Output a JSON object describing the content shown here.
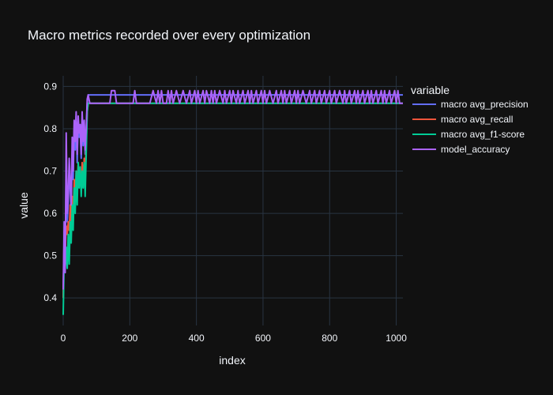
{
  "chart_data": {
    "type": "line",
    "title": "Macro metrics recorded over every optimization",
    "xlabel": "index",
    "ylabel": "value",
    "xlim": [
      0,
      1020
    ],
    "ylim": [
      0.335,
      0.925
    ],
    "x_ticks": [
      0,
      200,
      400,
      600,
      800,
      1000
    ],
    "y_ticks": [
      0.4,
      0.5,
      0.6,
      0.7,
      0.8,
      0.9
    ],
    "grid": true,
    "legend": {
      "title": "variable",
      "placement": "right"
    },
    "colors": {
      "background": "#111111",
      "grid": "#283442",
      "text": "#f2f5fa"
    },
    "series": [
      {
        "name": "macro avg_precision",
        "color": "#636efa",
        "points": [
          [
            0,
            0.4
          ],
          [
            3,
            0.55
          ],
          [
            6,
            0.49
          ],
          [
            9,
            0.72
          ],
          [
            12,
            0.58
          ],
          [
            15,
            0.62
          ],
          [
            18,
            0.7
          ],
          [
            21,
            0.66
          ],
          [
            24,
            0.6
          ],
          [
            27,
            0.74
          ],
          [
            30,
            0.68
          ],
          [
            33,
            0.8
          ],
          [
            36,
            0.75
          ],
          [
            39,
            0.83
          ],
          [
            42,
            0.72
          ],
          [
            45,
            0.82
          ],
          [
            48,
            0.78
          ],
          [
            51,
            0.8
          ],
          [
            54,
            0.73
          ],
          [
            57,
            0.83
          ],
          [
            60,
            0.76
          ],
          [
            63,
            0.81
          ],
          [
            66,
            0.74
          ],
          [
            69,
            0.79
          ],
          [
            72,
            0.86
          ],
          [
            75,
            0.88
          ],
          [
            1020,
            0.88
          ]
        ]
      },
      {
        "name": "macro avg_recall",
        "color": "#ef553b",
        "points": [
          [
            0,
            0.4
          ],
          [
            3,
            0.56
          ],
          [
            6,
            0.5
          ],
          [
            9,
            0.57
          ],
          [
            12,
            0.55
          ],
          [
            15,
            0.58
          ],
          [
            18,
            0.56
          ],
          [
            21,
            0.62
          ],
          [
            24,
            0.58
          ],
          [
            27,
            0.64
          ],
          [
            30,
            0.6
          ],
          [
            33,
            0.68
          ],
          [
            36,
            0.64
          ],
          [
            39,
            0.7
          ],
          [
            42,
            0.66
          ],
          [
            45,
            0.72
          ],
          [
            48,
            0.68
          ],
          [
            51,
            0.7
          ],
          [
            54,
            0.66
          ],
          [
            57,
            0.72
          ],
          [
            60,
            0.68
          ],
          [
            63,
            0.73
          ],
          [
            66,
            0.7
          ],
          [
            69,
            0.76
          ],
          [
            72,
            0.84
          ],
          [
            75,
            0.86
          ],
          [
            1020,
            0.86
          ]
        ]
      },
      {
        "name": "macro avg_f1-score",
        "color": "#00cc96",
        "points": [
          [
            0,
            0.36
          ],
          [
            3,
            0.5
          ],
          [
            6,
            0.47
          ],
          [
            9,
            0.52
          ],
          [
            12,
            0.47
          ],
          [
            15,
            0.55
          ],
          [
            18,
            0.48
          ],
          [
            21,
            0.58
          ],
          [
            24,
            0.53
          ],
          [
            27,
            0.62
          ],
          [
            30,
            0.56
          ],
          [
            33,
            0.66
          ],
          [
            36,
            0.6
          ],
          [
            39,
            0.7
          ],
          [
            42,
            0.62
          ],
          [
            45,
            0.72
          ],
          [
            48,
            0.66
          ],
          [
            51,
            0.71
          ],
          [
            54,
            0.64
          ],
          [
            57,
            0.7
          ],
          [
            60,
            0.66
          ],
          [
            63,
            0.72
          ],
          [
            66,
            0.64
          ],
          [
            69,
            0.74
          ],
          [
            72,
            0.84
          ],
          [
            75,
            0.86
          ],
          [
            1020,
            0.86
          ]
        ]
      },
      {
        "name": "model_accuracy",
        "color": "#ab63fa",
        "points": [
          [
            0,
            0.42
          ],
          [
            3,
            0.58
          ],
          [
            6,
            0.46
          ],
          [
            9,
            0.79
          ],
          [
            12,
            0.6
          ],
          [
            15,
            0.64
          ],
          [
            18,
            0.73
          ],
          [
            21,
            0.67
          ],
          [
            24,
            0.62
          ],
          [
            27,
            0.78
          ],
          [
            30,
            0.7
          ],
          [
            33,
            0.82
          ],
          [
            36,
            0.77
          ],
          [
            39,
            0.84
          ],
          [
            42,
            0.74
          ],
          [
            45,
            0.83
          ],
          [
            48,
            0.79
          ],
          [
            51,
            0.81
          ],
          [
            54,
            0.74
          ],
          [
            57,
            0.84
          ],
          [
            60,
            0.77
          ],
          [
            63,
            0.82
          ],
          [
            66,
            0.75
          ],
          [
            69,
            0.8
          ],
          [
            72,
            0.87
          ],
          [
            75,
            0.88
          ],
          [
            80,
            0.86
          ],
          [
            140,
            0.86
          ],
          [
            145,
            0.89
          ],
          [
            155,
            0.89
          ],
          [
            160,
            0.86
          ],
          [
            210,
            0.86
          ],
          [
            215,
            0.89
          ],
          [
            220,
            0.86
          ],
          [
            260,
            0.86
          ],
          [
            270,
            0.89
          ],
          [
            280,
            0.86
          ],
          [
            285,
            0.89
          ],
          [
            290,
            0.86
          ],
          [
            295,
            0.89
          ],
          [
            300,
            0.86
          ],
          [
            310,
            0.86
          ],
          [
            315,
            0.89
          ],
          [
            320,
            0.86
          ],
          [
            325,
            0.89
          ],
          [
            330,
            0.86
          ],
          [
            340,
            0.89
          ],
          [
            350,
            0.86
          ],
          [
            360,
            0.89
          ],
          [
            370,
            0.86
          ],
          [
            380,
            0.89
          ],
          [
            385,
            0.86
          ],
          [
            395,
            0.89
          ],
          [
            400,
            0.86
          ],
          [
            405,
            0.89
          ],
          [
            410,
            0.86
          ],
          [
            420,
            0.89
          ],
          [
            425,
            0.86
          ],
          [
            430,
            0.89
          ],
          [
            440,
            0.86
          ],
          [
            445,
            0.89
          ],
          [
            450,
            0.86
          ],
          [
            455,
            0.89
          ],
          [
            460,
            0.86
          ],
          [
            470,
            0.89
          ],
          [
            480,
            0.86
          ],
          [
            485,
            0.89
          ],
          [
            490,
            0.86
          ],
          [
            500,
            0.89
          ],
          [
            505,
            0.86
          ],
          [
            510,
            0.89
          ],
          [
            520,
            0.86
          ],
          [
            525,
            0.89
          ],
          [
            530,
            0.86
          ],
          [
            540,
            0.89
          ],
          [
            545,
            0.86
          ],
          [
            555,
            0.89
          ],
          [
            560,
            0.86
          ],
          [
            565,
            0.89
          ],
          [
            570,
            0.86
          ],
          [
            580,
            0.89
          ],
          [
            585,
            0.86
          ],
          [
            595,
            0.89
          ],
          [
            600,
            0.86
          ],
          [
            605,
            0.89
          ],
          [
            610,
            0.86
          ],
          [
            620,
            0.89
          ],
          [
            630,
            0.86
          ],
          [
            640,
            0.89
          ],
          [
            645,
            0.86
          ],
          [
            655,
            0.89
          ],
          [
            660,
            0.86
          ],
          [
            665,
            0.89
          ],
          [
            670,
            0.86
          ],
          [
            680,
            0.89
          ],
          [
            685,
            0.86
          ],
          [
            695,
            0.89
          ],
          [
            700,
            0.86
          ],
          [
            705,
            0.89
          ],
          [
            710,
            0.86
          ],
          [
            720,
            0.89
          ],
          [
            730,
            0.86
          ],
          [
            740,
            0.89
          ],
          [
            745,
            0.86
          ],
          [
            755,
            0.89
          ],
          [
            760,
            0.86
          ],
          [
            770,
            0.89
          ],
          [
            775,
            0.86
          ],
          [
            785,
            0.89
          ],
          [
            790,
            0.86
          ],
          [
            800,
            0.89
          ],
          [
            805,
            0.86
          ],
          [
            815,
            0.89
          ],
          [
            820,
            0.86
          ],
          [
            830,
            0.89
          ],
          [
            840,
            0.86
          ],
          [
            845,
            0.89
          ],
          [
            850,
            0.86
          ],
          [
            860,
            0.89
          ],
          [
            865,
            0.86
          ],
          [
            875,
            0.89
          ],
          [
            880,
            0.86
          ],
          [
            885,
            0.89
          ],
          [
            890,
            0.86
          ],
          [
            900,
            0.89
          ],
          [
            905,
            0.86
          ],
          [
            915,
            0.89
          ],
          [
            920,
            0.86
          ],
          [
            925,
            0.89
          ],
          [
            930,
            0.86
          ],
          [
            940,
            0.89
          ],
          [
            945,
            0.86
          ],
          [
            955,
            0.89
          ],
          [
            960,
            0.86
          ],
          [
            965,
            0.89
          ],
          [
            970,
            0.86
          ],
          [
            980,
            0.89
          ],
          [
            985,
            0.86
          ],
          [
            995,
            0.89
          ],
          [
            1000,
            0.86
          ],
          [
            1005,
            0.89
          ],
          [
            1010,
            0.86
          ],
          [
            1020,
            0.86
          ]
        ]
      }
    ]
  }
}
